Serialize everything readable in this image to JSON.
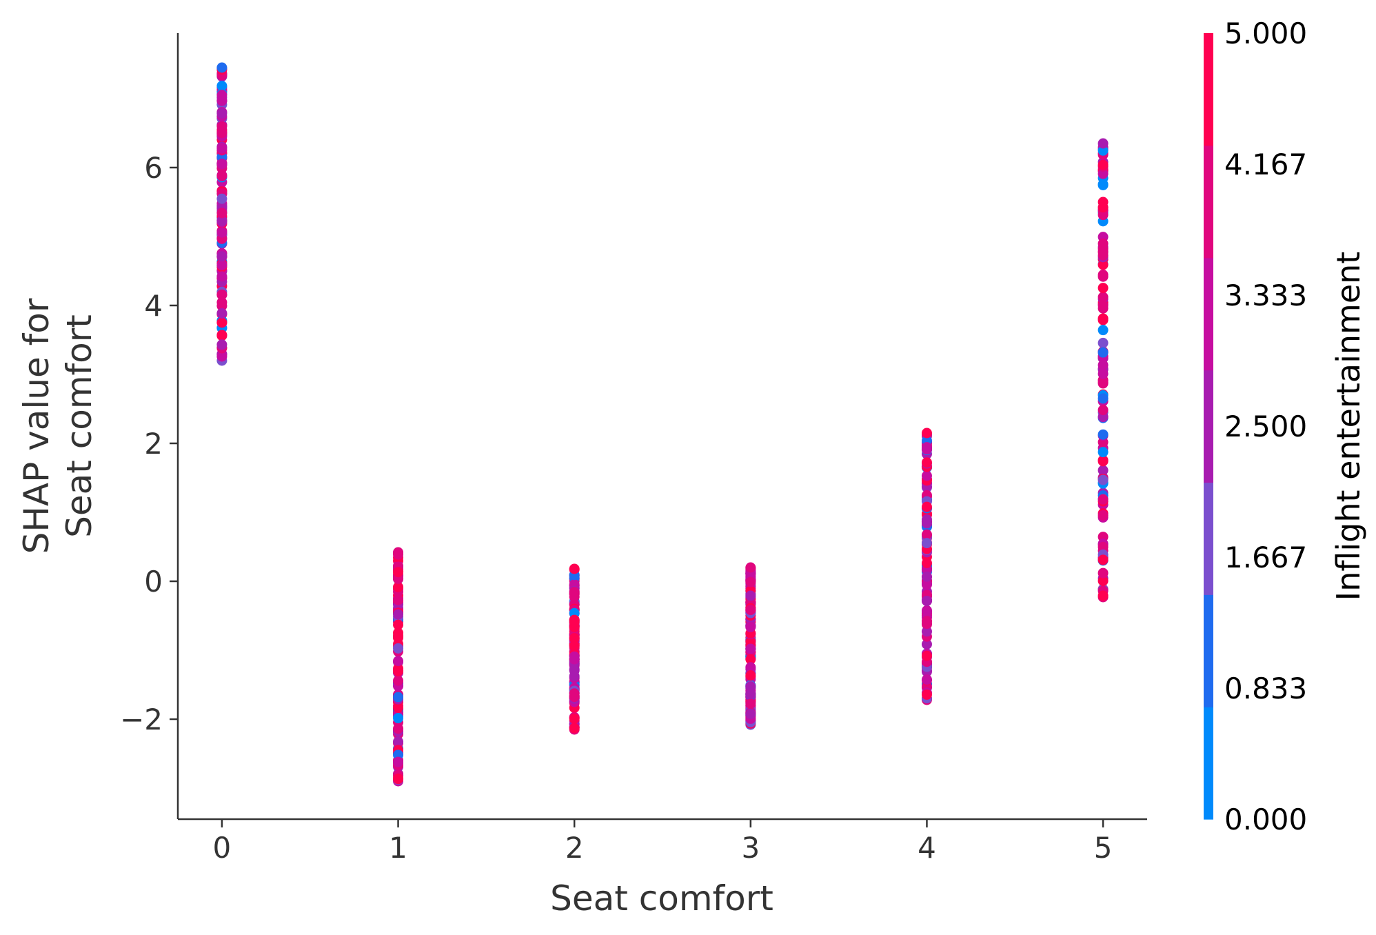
{
  "chart_data": {
    "type": "scatter",
    "title": "",
    "xlabel": "Seat comfort",
    "ylabel_lines": [
      "SHAP value for",
      "Seat comfort"
    ],
    "xlim": [
      -0.25,
      5.25
    ],
    "ylim": [
      -3.45,
      7.95
    ],
    "x_ticks": [
      0,
      1,
      2,
      3,
      4,
      5
    ],
    "y_ticks": [
      -2,
      0,
      2,
      4,
      6
    ],
    "y_tick_labels": [
      "−2",
      "0",
      "2",
      "4",
      "6"
    ],
    "grid": false,
    "colorbar": {
      "label": "Inflight entertainment",
      "range": [
        0,
        5
      ],
      "ticks": [
        0,
        0.833,
        1.667,
        2.5,
        3.333,
        4.167,
        5
      ],
      "tick_labels": [
        "0.000",
        "0.833",
        "1.667",
        "2.500",
        "3.333",
        "4.167",
        "5.000"
      ],
      "colors": [
        "#008afb",
        "#1f6bef",
        "#7b4fce",
        "#a81cb0",
        "#c60da0",
        "#e0067e",
        "#ff0051"
      ]
    },
    "groups": [
      {
        "x": 0,
        "y_min": 3.2,
        "y_max": 7.45
      },
      {
        "x": 1,
        "y_min": -2.9,
        "y_max": 0.42
      },
      {
        "x": 2,
        "y_min": -2.15,
        "y_max": 0.18
      },
      {
        "x": 3,
        "y_min": -2.08,
        "y_max": 0.2
      },
      {
        "x": 4,
        "y_min": -1.72,
        "y_max": 2.15
      },
      {
        "x": 5,
        "y_min": -0.23,
        "y_max": 6.35
      }
    ]
  }
}
